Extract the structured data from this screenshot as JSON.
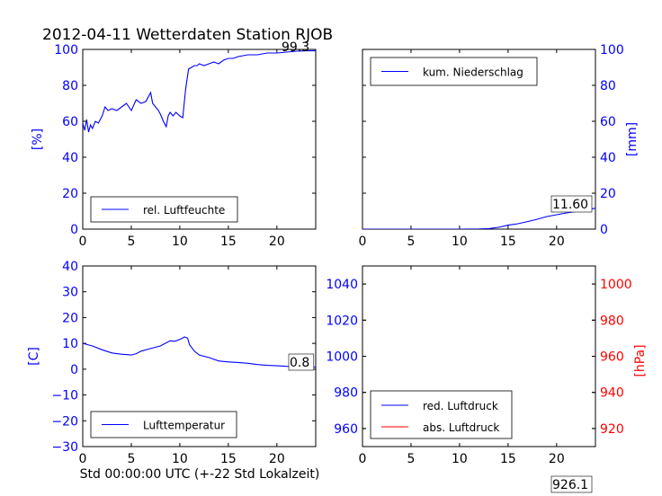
{
  "title": "2012-04-11 Wetterdaten Station RJOB",
  "colors": {
    "axis_left": "#0000ff",
    "axis_right": "#ff0000",
    "text": "#000000"
  },
  "chart_data": [
    {
      "id": "humidity",
      "type": "line",
      "ylabel": "[%]",
      "xlim": [
        0,
        24
      ],
      "ylim": [
        0,
        100
      ],
      "xticks": [
        0,
        5,
        10,
        15,
        20
      ],
      "yticks": [
        0,
        20,
        40,
        60,
        80,
        100
      ],
      "legend": {
        "placement": "lower-left",
        "entries": [
          {
            "label": "rel. Luftfeuchte",
            "color": "#0000ff"
          }
        ]
      },
      "annotation": "99.3",
      "series": [
        {
          "name": "rel. Luftfeuchte",
          "color": "#0000ff",
          "x": [
            0,
            0.2,
            0.4,
            0.6,
            0.8,
            1,
            1.3,
            1.6,
            2,
            2.3,
            2.6,
            3,
            3.5,
            4,
            4.5,
            5,
            5.5,
            6,
            6.5,
            7,
            7.2,
            7.5,
            7.8,
            8,
            8.3,
            8.6,
            8.8,
            9,
            9.3,
            9.6,
            10,
            10.3,
            10.6,
            10.9,
            11.2,
            11.5,
            11.8,
            12,
            12.5,
            13,
            13.5,
            14,
            14.5,
            15,
            15.5,
            16,
            17,
            18,
            19,
            20,
            21,
            22,
            23,
            24
          ],
          "y": [
            59,
            55,
            61,
            54,
            58,
            56,
            60,
            59,
            63,
            68,
            66,
            67,
            66,
            68,
            70,
            66,
            72,
            70,
            71,
            76,
            70,
            68,
            66,
            64,
            60,
            57,
            63,
            65,
            63,
            65,
            63,
            62,
            78,
            89,
            90,
            91,
            91,
            92,
            91,
            92,
            93,
            92,
            94,
            95,
            95,
            96,
            97,
            97,
            98,
            98,
            98.5,
            99,
            99.2,
            99.3
          ]
        }
      ]
    },
    {
      "id": "precipitation",
      "type": "line",
      "ylabel": "[mm]",
      "xlim": [
        0,
        24
      ],
      "ylim": [
        0,
        100
      ],
      "xticks": [
        0,
        5,
        10,
        15,
        20
      ],
      "yticks": [
        0,
        20,
        40,
        60,
        80,
        100
      ],
      "legend": {
        "placement": "upper-left",
        "entries": [
          {
            "label": "kum. Niederschlag",
            "color": "#0000ff"
          }
        ]
      },
      "annotation": "11.60",
      "series": [
        {
          "name": "kum. Niederschlag",
          "color": "#0000ff",
          "x": [
            0,
            5,
            10,
            12,
            13,
            14,
            15,
            16,
            17,
            18,
            19,
            20,
            21,
            22,
            23,
            24
          ],
          "y": [
            0,
            0,
            0,
            0.1,
            0.3,
            1,
            2.2,
            3,
            4.2,
            5.5,
            7,
            8,
            9,
            9.8,
            10.8,
            11.6
          ]
        }
      ]
    },
    {
      "id": "temperature",
      "type": "line",
      "ylabel": "[C]",
      "xlabel": "Std 00:00:00 UTC (+-22 Std Lokalzeit)",
      "xlim": [
        0,
        24
      ],
      "ylim": [
        -30,
        40
      ],
      "xticks": [
        0,
        5,
        10,
        15,
        20
      ],
      "yticks": [
        -30,
        -20,
        -10,
        0,
        10,
        20,
        30,
        40
      ],
      "legend": {
        "placement": "lower-left",
        "entries": [
          {
            "label": "Lufttemperatur",
            "color": "#0000ff"
          }
        ]
      },
      "annotation": "0.8",
      "series": [
        {
          "name": "Lufttemperatur",
          "color": "#0000ff",
          "x": [
            0,
            0.5,
            1,
            2,
            3,
            4,
            5,
            5.5,
            6,
            7,
            8,
            8.5,
            9,
            9.5,
            10,
            10.5,
            10.8,
            11,
            11.5,
            12,
            13,
            14,
            15,
            16,
            17,
            18,
            19,
            20,
            21,
            22,
            23,
            24
          ],
          "y": [
            10,
            9.5,
            9,
            7.5,
            6.3,
            5.8,
            5.5,
            6,
            7,
            8,
            9,
            10,
            11,
            10.8,
            11.5,
            12.5,
            12,
            9.5,
            7,
            5.5,
            4.5,
            3.2,
            2.8,
            2.6,
            2.3,
            1.8,
            1.5,
            1.3,
            1.1,
            1,
            0.9,
            0.8
          ]
        }
      ]
    },
    {
      "id": "pressure",
      "type": "line",
      "xlim": [
        0,
        24
      ],
      "ylim": [
        950,
        1050
      ],
      "ylim_right": [
        910,
        1010
      ],
      "ylabel_right": "[hPa]",
      "xticks": [
        0,
        5,
        10,
        15,
        20
      ],
      "yticks": [
        960,
        980,
        1000,
        1020,
        1040
      ],
      "yticks_right": [
        920,
        940,
        960,
        980,
        1000
      ],
      "legend": {
        "placement": "lower-left",
        "entries": [
          {
            "label": "red. Luftdruck",
            "color": "#0000ff"
          },
          {
            "label": "abs. Luftdruck",
            "color": "#ff0000"
          }
        ]
      },
      "annotation": "926.1",
      "series": [
        {
          "name": "red. Luftdruck",
          "color": "#0000ff",
          "x": [],
          "y": []
        },
        {
          "name": "abs. Luftdruck",
          "color": "#ff0000",
          "x": [],
          "y": []
        }
      ]
    }
  ]
}
